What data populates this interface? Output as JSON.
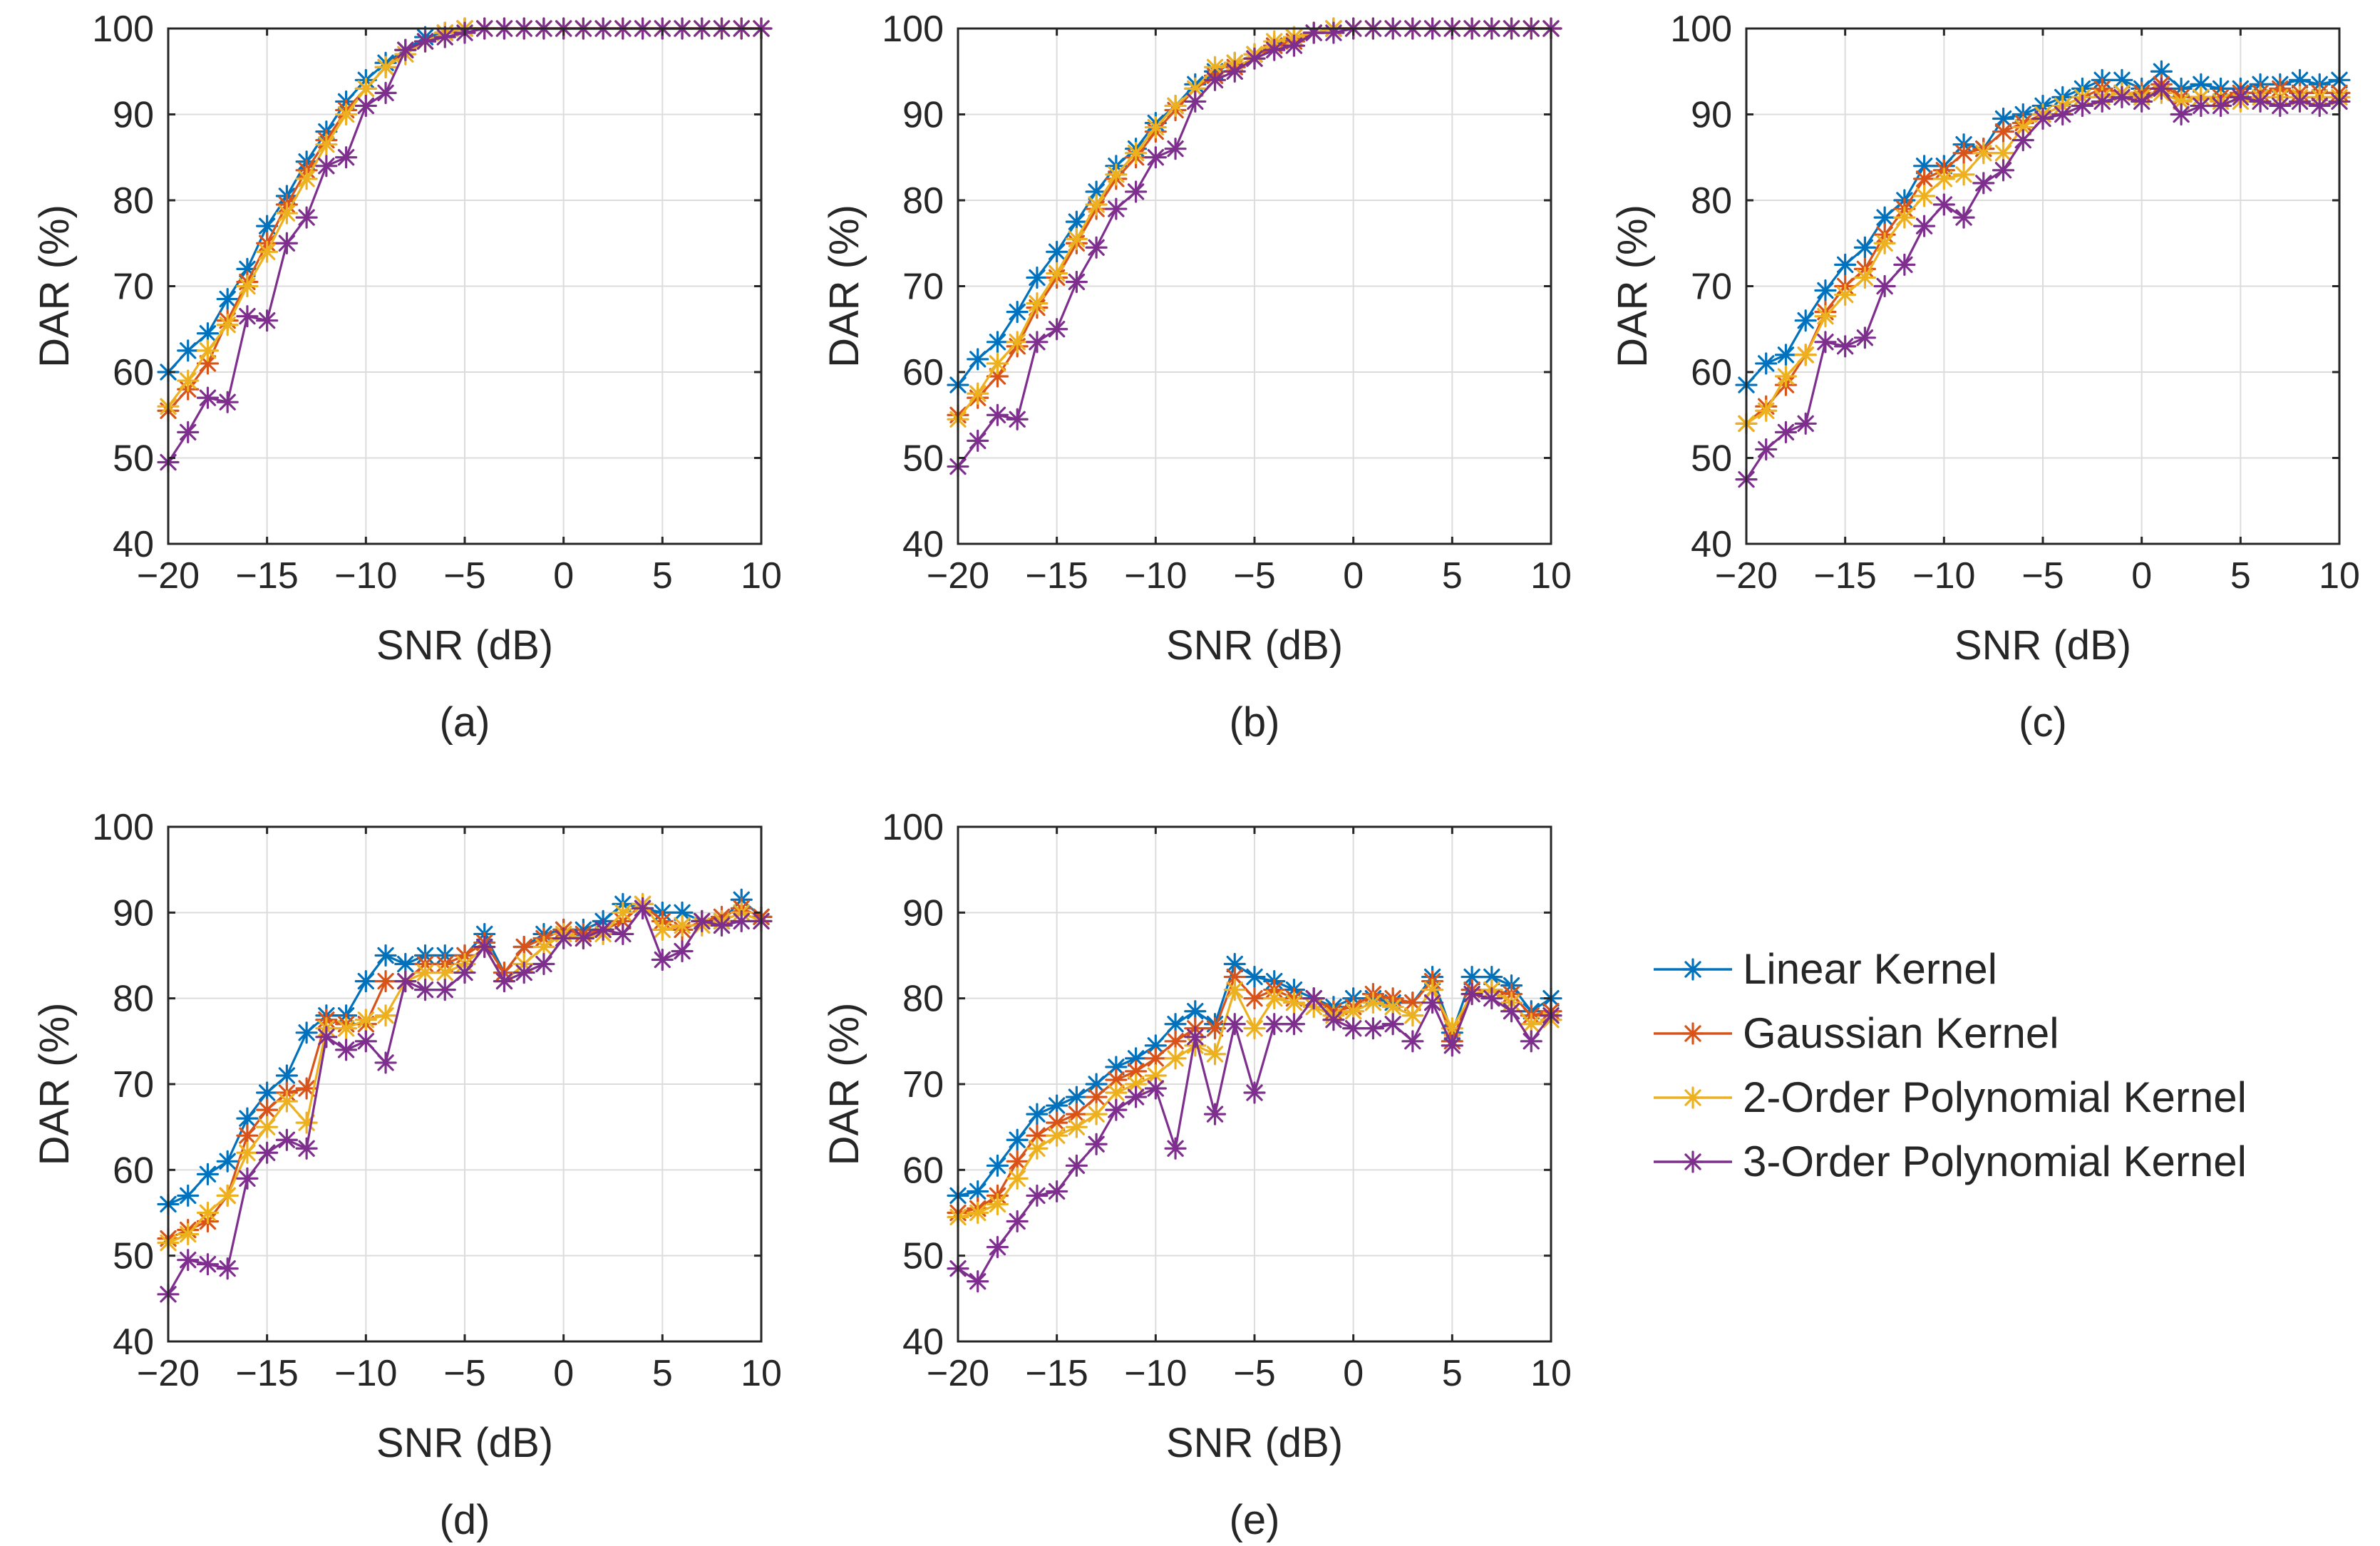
{
  "legend": {
    "placement": "right",
    "items": [
      {
        "name": "Linear Kernel",
        "color": "#0072BD"
      },
      {
        "name": "Gaussian Kernel",
        "color": "#D95319"
      },
      {
        "name": "2-Order Polynomial Kernel",
        "color": "#EDB120"
      },
      {
        "name": "3-Order Polynomial Kernel",
        "color": "#7E2F8E"
      }
    ]
  },
  "chart_data": [
    {
      "type": "line",
      "caption": "(a)",
      "xlabel": "SNR (dB)",
      "ylabel": "DAR (%)",
      "xlim": [
        -20,
        10
      ],
      "ylim": [
        40,
        100
      ],
      "xticks": [
        "−20",
        "−15",
        "−10",
        "−5",
        "0",
        "5",
        "10"
      ],
      "yticks": [
        "40",
        "50",
        "60",
        "70",
        "80",
        "90",
        "100"
      ],
      "grid": true,
      "x": [
        -20,
        -19,
        -18,
        -17,
        -16,
        -15,
        -14,
        -13,
        -12,
        -11,
        -10,
        -9,
        -8,
        -7,
        -6,
        -5,
        -4,
        -3,
        -2,
        -1,
        0,
        1,
        2,
        3,
        4,
        5,
        6,
        7,
        8,
        9,
        10
      ],
      "series": [
        {
          "name": "Linear Kernel",
          "values": [
            60,
            62.5,
            64.5,
            68.5,
            72,
            77,
            80.5,
            84.5,
            88,
            91.5,
            94,
            96,
            97.5,
            99,
            99.5,
            100,
            100,
            100,
            100,
            100,
            100,
            100,
            100,
            100,
            100,
            100,
            100,
            100,
            100,
            100,
            100
          ]
        },
        {
          "name": "Gaussian Kernel",
          "values": [
            55.5,
            58,
            61,
            66,
            70.5,
            75,
            79.5,
            83.5,
            87,
            90.5,
            93,
            95.5,
            97.5,
            98.5,
            99.5,
            100,
            100,
            100,
            100,
            100,
            100,
            100,
            100,
            100,
            100,
            100,
            100,
            100,
            100,
            100,
            100
          ]
        },
        {
          "name": "2-Order Polynomial Kernel",
          "values": [
            56,
            59,
            62.5,
            65.5,
            70,
            74,
            78.5,
            82.5,
            86.5,
            90,
            93,
            95.5,
            97,
            98.5,
            99.5,
            100,
            100,
            100,
            100,
            100,
            100,
            100,
            100,
            100,
            100,
            100,
            100,
            100,
            100,
            100,
            100
          ]
        },
        {
          "name": "3-Order Polynomial Kernel",
          "values": [
            49.5,
            53,
            57,
            56.5,
            66.5,
            66,
            75,
            78,
            84,
            85,
            91,
            92.5,
            97.5,
            98.5,
            99,
            99.5,
            100,
            100,
            100,
            100,
            100,
            100,
            100,
            100,
            100,
            100,
            100,
            100,
            100,
            100,
            100
          ]
        }
      ]
    },
    {
      "type": "line",
      "caption": "(b)",
      "xlabel": "SNR (dB)",
      "ylabel": "DAR (%)",
      "xlim": [
        -20,
        10
      ],
      "ylim": [
        40,
        100
      ],
      "xticks": [
        "−20",
        "−15",
        "−10",
        "−5",
        "0",
        "5",
        "10"
      ],
      "yticks": [
        "40",
        "50",
        "60",
        "70",
        "80",
        "90",
        "100"
      ],
      "grid": true,
      "x": [
        -20,
        -19,
        -18,
        -17,
        -16,
        -15,
        -14,
        -13,
        -12,
        -11,
        -10,
        -9,
        -8,
        -7,
        -6,
        -5,
        -4,
        -3,
        -2,
        -1,
        0,
        1,
        2,
        3,
        4,
        5,
        6,
        7,
        8,
        9,
        10
      ],
      "series": [
        {
          "name": "Linear Kernel",
          "values": [
            58.5,
            61.5,
            63.5,
            67,
            71,
            74,
            77.5,
            81,
            84,
            86,
            89,
            91,
            93.5,
            95,
            96,
            97,
            98,
            99,
            99.5,
            100,
            100,
            100,
            100,
            100,
            100,
            100,
            100,
            100,
            100,
            100,
            100
          ]
        },
        {
          "name": "Gaussian Kernel",
          "values": [
            55,
            57,
            59.5,
            63,
            67.5,
            71,
            75,
            79,
            82.5,
            85,
            88,
            90.5,
            93,
            94.5,
            95.5,
            96.5,
            98,
            98.5,
            99.5,
            100,
            100,
            100,
            100,
            100,
            100,
            100,
            100,
            100,
            100,
            100,
            100
          ]
        },
        {
          "name": "2-Order Polynomial Kernel",
          "values": [
            54.5,
            57.5,
            61,
            63.5,
            68,
            71.5,
            75.5,
            79.5,
            83,
            85.5,
            88.5,
            91,
            93,
            95.5,
            96,
            97,
            98.5,
            99,
            99.5,
            100,
            100,
            100,
            100,
            100,
            100,
            100,
            100,
            100,
            100,
            100,
            100
          ]
        },
        {
          "name": "3-Order Polynomial Kernel",
          "values": [
            49,
            52,
            55,
            54.5,
            63.5,
            65,
            70.5,
            74.5,
            79,
            81,
            85,
            86,
            91.5,
            94,
            95,
            96.5,
            97.5,
            98,
            99.5,
            99.5,
            100,
            100,
            100,
            100,
            100,
            100,
            100,
            100,
            100,
            100,
            100
          ]
        }
      ]
    },
    {
      "type": "line",
      "caption": "(c)",
      "xlabel": "SNR (dB)",
      "ylabel": "DAR (%)",
      "xlim": [
        -20,
        10
      ],
      "ylim": [
        40,
        100
      ],
      "xticks": [
        "−20",
        "−15",
        "−10",
        "−5",
        "0",
        "5",
        "10"
      ],
      "yticks": [
        "40",
        "50",
        "60",
        "70",
        "80",
        "90",
        "100"
      ],
      "grid": true,
      "x": [
        -20,
        -19,
        -18,
        -17,
        -16,
        -15,
        -14,
        -13,
        -12,
        -11,
        -10,
        -9,
        -8,
        -7,
        -6,
        -5,
        -4,
        -3,
        -2,
        -1,
        0,
        1,
        2,
        3,
        4,
        5,
        6,
        7,
        8,
        9,
        10
      ],
      "series": [
        {
          "name": "Linear Kernel",
          "values": [
            58.5,
            61,
            62,
            66,
            69.5,
            72.5,
            74.5,
            78,
            80,
            84,
            84,
            86.5,
            86,
            89.5,
            90,
            91,
            92,
            93,
            94,
            94,
            93,
            95,
            93,
            93.5,
            93,
            93,
            93.5,
            93.5,
            94,
            93.5,
            94
          ]
        },
        {
          "name": "Gaussian Kernel",
          "values": [
            54,
            56,
            58.5,
            62,
            67,
            70,
            72,
            76,
            79,
            82.5,
            83.5,
            85.5,
            86,
            88,
            89,
            90,
            91,
            92,
            93,
            92.5,
            92.5,
            93.5,
            92,
            92,
            92,
            92.5,
            92.5,
            93,
            92.5,
            92.5,
            92.5
          ]
        },
        {
          "name": "2-Order Polynomial Kernel",
          "values": [
            54,
            55.5,
            59.5,
            62,
            66.5,
            69,
            71,
            75,
            78,
            80.5,
            82.5,
            83,
            85.5,
            85.5,
            88.5,
            90,
            91,
            92,
            92,
            92.5,
            92,
            92.5,
            91.5,
            92,
            91.5,
            91.5,
            92,
            92,
            92,
            92,
            92
          ]
        },
        {
          "name": "3-Order Polynomial Kernel",
          "values": [
            47.5,
            51,
            53,
            54,
            63.5,
            63,
            64,
            70,
            72.5,
            77,
            79.5,
            78,
            82,
            83.5,
            87,
            89.5,
            90,
            91,
            91.5,
            92,
            91.5,
            93,
            90,
            91,
            91,
            92,
            91.5,
            91,
            91.5,
            91,
            91.5
          ]
        }
      ]
    },
    {
      "type": "line",
      "caption": "(d)",
      "xlabel": "SNR (dB)",
      "ylabel": "DAR (%)",
      "xlim": [
        -20,
        10
      ],
      "ylim": [
        40,
        100
      ],
      "xticks": [
        "−20",
        "−15",
        "−10",
        "−5",
        "0",
        "5",
        "10"
      ],
      "yticks": [
        "40",
        "50",
        "60",
        "70",
        "80",
        "90",
        "100"
      ],
      "grid": true,
      "x": [
        -20,
        -19,
        -18,
        -17,
        -16,
        -15,
        -14,
        -13,
        -12,
        -11,
        -10,
        -9,
        -8,
        -7,
        -6,
        -5,
        -4,
        -3,
        -2,
        -1,
        0,
        1,
        2,
        3,
        4,
        5,
        6,
        7,
        8,
        9,
        10
      ],
      "series": [
        {
          "name": "Linear Kernel",
          "values": [
            56,
            57,
            59.5,
            61,
            66,
            69,
            71,
            76,
            78,
            78,
            82,
            85,
            84,
            85,
            85,
            85,
            87.5,
            83,
            86,
            87.5,
            88,
            88,
            89,
            91,
            90.5,
            90,
            90,
            89,
            89,
            91.5,
            89.5
          ]
        },
        {
          "name": "Gaussian Kernel",
          "values": [
            52,
            53,
            54,
            57,
            64,
            67,
            69,
            69.5,
            77.5,
            77,
            77,
            82,
            82,
            84,
            84,
            85,
            86.5,
            83,
            86,
            87,
            88,
            87.5,
            88,
            89,
            91,
            89,
            88,
            89,
            89.5,
            90.5,
            89.5
          ]
        },
        {
          "name": "2-Order Polynomial Kernel",
          "values": [
            51.5,
            52.5,
            55,
            57,
            62,
            65,
            68,
            65.5,
            76.5,
            76.5,
            77.5,
            78,
            82,
            83,
            83,
            84,
            86,
            82,
            84,
            86,
            87.5,
            87,
            87.5,
            90,
            91,
            88,
            88.5,
            88.5,
            89,
            90,
            89
          ]
        },
        {
          "name": "3-Order Polynomial Kernel",
          "values": [
            45.5,
            49.5,
            49,
            48.5,
            59,
            62,
            63.5,
            62.5,
            75.5,
            74,
            75,
            72.5,
            82,
            81,
            81,
            83,
            86,
            82,
            83,
            84,
            87,
            87,
            88,
            87.5,
            90.5,
            84.5,
            85.5,
            89,
            88.5,
            89,
            89
          ]
        }
      ]
    },
    {
      "type": "line",
      "caption": "(e)",
      "xlabel": "SNR (dB)",
      "ylabel": "DAR (%)",
      "xlim": [
        -20,
        10
      ],
      "ylim": [
        40,
        100
      ],
      "xticks": [
        "−20",
        "−15",
        "−10",
        "−5",
        "0",
        "5",
        "10"
      ],
      "yticks": [
        "40",
        "50",
        "60",
        "70",
        "80",
        "90",
        "100"
      ],
      "grid": true,
      "x": [
        -20,
        -19,
        -18,
        -17,
        -16,
        -15,
        -14,
        -13,
        -12,
        -11,
        -10,
        -9,
        -8,
        -7,
        -6,
        -5,
        -4,
        -3,
        -2,
        -1,
        0,
        1,
        2,
        3,
        4,
        5,
        6,
        7,
        8,
        9,
        10
      ],
      "series": [
        {
          "name": "Linear Kernel",
          "values": [
            57,
            57.5,
            60.5,
            63.5,
            66.5,
            67.5,
            68.5,
            70,
            72,
            73,
            74.5,
            77,
            78.5,
            77,
            84,
            82.5,
            82,
            81,
            80,
            79,
            80,
            80,
            79.5,
            79.5,
            82.5,
            76,
            82.5,
            82.5,
            81.5,
            78.5,
            80
          ]
        },
        {
          "name": "Gaussian Kernel",
          "values": [
            55,
            55.5,
            57,
            61,
            64,
            65.5,
            66.5,
            68.5,
            70.5,
            71.5,
            73,
            75,
            76.5,
            76.5,
            82.5,
            80,
            81,
            80,
            80,
            78.5,
            79,
            80.5,
            80,
            79.5,
            82,
            75,
            81,
            81,
            80.5,
            78,
            78.5
          ]
        },
        {
          "name": "2-Order Polynomial Kernel",
          "values": [
            54.5,
            55,
            56,
            59,
            62.5,
            64,
            65,
            66.5,
            69,
            70,
            71,
            73,
            74.5,
            73.5,
            81,
            76.5,
            80,
            79.5,
            79,
            78,
            78.5,
            79.5,
            79,
            78,
            81,
            76.5,
            80.5,
            81,
            79.5,
            77,
            77.5
          ]
        },
        {
          "name": "3-Order Polynomial Kernel",
          "values": [
            48.5,
            47,
            51,
            54,
            57,
            57.5,
            60.5,
            63,
            67,
            68.5,
            69.5,
            62.5,
            75.5,
            66.5,
            77,
            69,
            77,
            77,
            80,
            77.5,
            76.5,
            76.5,
            77,
            75,
            79.5,
            74.5,
            80.5,
            80,
            78.5,
            75,
            78
          ]
        }
      ]
    }
  ]
}
